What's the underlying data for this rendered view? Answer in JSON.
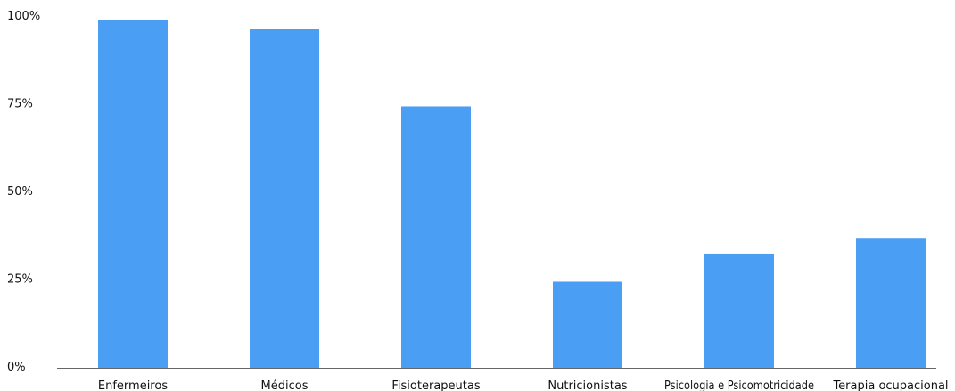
{
  "chart_data": {
    "type": "bar",
    "title": "",
    "xlabel": "",
    "ylabel": "",
    "ylim": [
      0,
      100
    ],
    "y_ticks": [
      {
        "value": 0,
        "label": "0%"
      },
      {
        "value": 25,
        "label": "25%"
      },
      {
        "value": 50,
        "label": "50%"
      },
      {
        "value": 75,
        "label": "75%"
      },
      {
        "value": 100,
        "label": "100%"
      }
    ],
    "categories": [
      "Enfermeiros",
      "Médicos",
      "Fisioterapeutas",
      "Nutricionistas",
      "Psicologia e Psicomotricidade",
      "Terapia ocupacional"
    ],
    "values": [
      99,
      96.5,
      74.5,
      24.5,
      32.5,
      37
    ],
    "bar_color": "#4A9FF5",
    "grid": false,
    "legend": "none"
  }
}
